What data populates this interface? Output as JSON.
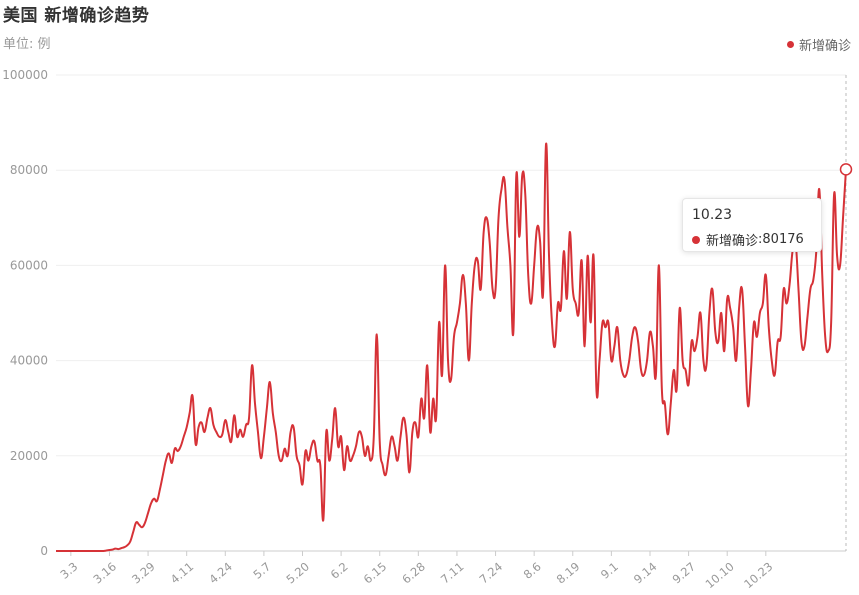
{
  "header": {
    "title": "美国 新增确诊趋势",
    "unit": "单位: 例"
  },
  "legend": {
    "label": "新增确诊",
    "position": "top-right"
  },
  "tooltip": {
    "date": "10.23",
    "series": "新增确诊",
    "value": "80176"
  },
  "colors": {
    "series": "#d63237",
    "grid": "#efefef",
    "axis": "#cccccc",
    "tick_text": "#999999"
  },
  "chart_data": {
    "type": "line",
    "title": "美国 新增确诊趋势",
    "ylabel": "单位: 例",
    "ylim": [
      0,
      100000
    ],
    "yticks": [
      0,
      20000,
      40000,
      60000,
      80000,
      100000
    ],
    "x_tick_labels": [
      "3.3",
      "3.16",
      "3.29",
      "4.11",
      "4.24",
      "5.7",
      "5.20",
      "6.2",
      "6.15",
      "6.28",
      "7.11",
      "7.24",
      "8.6",
      "8.19",
      "9.1",
      "9.14",
      "9.27",
      "10.10",
      "10.23"
    ],
    "start_date": "2020-02-27",
    "grid": true,
    "series": [
      {
        "name": "新增确诊",
        "values": [
          0,
          0,
          0,
          0,
          0,
          0,
          0,
          0,
          0,
          0,
          0,
          0,
          0,
          0,
          0,
          0,
          0,
          100,
          200,
          300,
          500,
          400,
          600,
          800,
          1200,
          2000,
          4000,
          6000,
          5500,
          5000,
          6000,
          8000,
          10000,
          11000,
          10500,
          13000,
          16000,
          19000,
          20500,
          18500,
          21500,
          21000,
          22000,
          24000,
          26000,
          29000,
          32500,
          22500,
          26000,
          27000,
          25000,
          28000,
          30000,
          26500,
          25000,
          24000,
          24500,
          27500,
          25000,
          23000,
          28500,
          24000,
          25500,
          24000,
          26500,
          28000,
          39000,
          31000,
          25000,
          19500,
          24000,
          30000,
          35500,
          29000,
          25000,
          20000,
          19000,
          21500,
          20000,
          25000,
          26000,
          20000,
          18000,
          14000,
          21000,
          19000,
          22000,
          23000,
          19000,
          18000,
          6500,
          25000,
          19000,
          23500,
          30000,
          22000,
          24000,
          17000,
          22000,
          19000,
          20000,
          22000,
          25000,
          24000,
          20000,
          22000,
          19000,
          24000,
          45500,
          23000,
          18000,
          16000,
          20000,
          24000,
          22000,
          19000,
          24000,
          28000,
          24500,
          16500,
          25000,
          27000,
          24000,
          32000,
          28000,
          39000,
          25000,
          32000,
          28000,
          48000,
          37000,
          60000,
          40000,
          36000,
          45000,
          48000,
          52000,
          58000,
          52000,
          40000,
          52000,
          60000,
          61000,
          55000,
          67000,
          70000,
          65000,
          55000,
          55000,
          70000,
          76000,
          78000,
          68000,
          60000,
          46000,
          79000,
          66000,
          79000,
          75000,
          58000,
          52000,
          60000,
          68000,
          65000,
          54000,
          85500,
          62000,
          48000,
          43000,
          52000,
          51000,
          63000,
          53000,
          67000,
          55000,
          52000,
          50000,
          61000,
          43000,
          62000,
          48000,
          62000,
          33500,
          40000,
          48000,
          47000,
          48000,
          40000,
          43000,
          47000,
          40000,
          37000,
          37000,
          40000,
          45000,
          47000,
          44000,
          38000,
          37000,
          40000,
          46000,
          43000,
          37000,
          60000,
          34000,
          31000,
          24500,
          31000,
          38000,
          34000,
          51000,
          40000,
          38000,
          35000,
          44000,
          42000,
          45000,
          50000,
          40000,
          39000,
          50000,
          55000,
          46000,
          44000,
          50000,
          42000,
          53000,
          51000,
          47000,
          40000,
          51000,
          55000,
          43000,
          30500,
          38000,
          48000,
          45000,
          50000,
          52000,
          58000,
          47000,
          40000,
          37000,
          44000,
          45000,
          55000,
          52000,
          56000,
          63000,
          65000,
          55000,
          44000,
          43000,
          49000,
          55000,
          57000,
          63000,
          76000,
          58000,
          45000,
          42000,
          48000,
          75000,
          62000,
          60000,
          70000,
          80176
        ]
      }
    ]
  }
}
